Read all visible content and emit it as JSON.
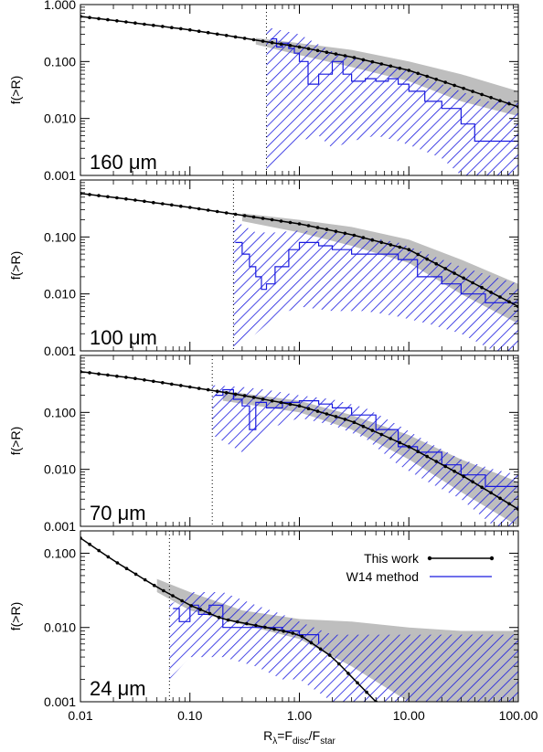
{
  "chart_data": {
    "type": "line",
    "shared_x": {
      "scale": "log",
      "xlim": [
        0.01,
        100.0
      ],
      "ticks": [
        0.01,
        0.1,
        1.0,
        10.0,
        100.0
      ],
      "tick_labels": [
        "0.01",
        "0.10",
        "1.00",
        "10.00",
        "100.00"
      ],
      "xlabel": {
        "main": "R",
        "sub1": "λ",
        "mid": "=F",
        "sub2": "disc",
        "mid2": "/F",
        "sub3": "star"
      }
    },
    "legend": {
      "placement": "inside-right (bottom panel)",
      "entries": [
        {
          "label": "This work",
          "color": "#000000",
          "style": "line-with-dots"
        },
        {
          "label": "W14 method",
          "color": "#1a1adf",
          "style": "line"
        }
      ]
    },
    "colors": {
      "this_work": "#000000",
      "band": "#bebebe",
      "w14": "#1a1adf"
    },
    "panels": [
      {
        "label": "160 μm",
        "ylabel": "f(>R)",
        "yscale": "log",
        "ylim": [
          0.001,
          1.0
        ],
        "yticks": [
          0.001,
          0.01,
          0.1,
          1.0
        ],
        "ytick_labels": [
          "0.001",
          "0.010",
          "0.100",
          "1.000"
        ],
        "vline_x": 0.5,
        "this_work": {
          "x": [
            0.01,
            0.03,
            0.1,
            0.3,
            1.0,
            3.0,
            10.0,
            30.0,
            100.0
          ],
          "y": [
            0.62,
            0.48,
            0.36,
            0.26,
            0.18,
            0.12,
            0.07,
            0.035,
            0.016
          ]
        },
        "band": {
          "x": [
            0.4,
            1.0,
            3.0,
            10.0,
            30.0,
            100.0
          ],
          "low": [
            0.2,
            0.13,
            0.08,
            0.045,
            0.02,
            0.011
          ],
          "high": [
            0.26,
            0.21,
            0.16,
            0.1,
            0.06,
            0.03
          ]
        },
        "w14": {
          "x": [
            0.55,
            0.62,
            0.7,
            0.8,
            0.9,
            1.0,
            1.2,
            1.5,
            2.0,
            2.5,
            3.0,
            4.0,
            5.0,
            6.5,
            8.0,
            10.0,
            14.0,
            20.0,
            30.0,
            40.0,
            60.0,
            100.0
          ],
          "y": [
            0.25,
            0.18,
            0.21,
            0.17,
            0.14,
            0.1,
            0.04,
            0.06,
            0.1,
            0.06,
            0.045,
            0.05,
            0.045,
            0.05,
            0.04,
            0.03,
            0.02,
            0.015,
            0.008,
            0.004,
            0.004,
            0.004
          ]
        },
        "w14_band": {
          "x": [
            0.5,
            0.7,
            1.0,
            1.5,
            2.0,
            3.0,
            5.0,
            8.0,
            12.0,
            20.0,
            30.0,
            50.0,
            100.0
          ],
          "low": [
            0.001,
            0.002,
            0.004,
            0.005,
            0.003,
            0.004,
            0.005,
            0.004,
            0.003,
            0.002,
            0.001,
            0.001,
            0.001
          ],
          "high": [
            0.4,
            0.35,
            0.3,
            0.2,
            0.15,
            0.12,
            0.1,
            0.08,
            0.06,
            0.04,
            0.03,
            0.02,
            0.02
          ]
        }
      },
      {
        "label": "100 μm",
        "ylabel": "f(>R)",
        "yscale": "log",
        "ylim": [
          0.001,
          1.0
        ],
        "yticks": [
          0.001,
          0.01,
          0.1
        ],
        "ytick_labels": [
          "0.001",
          "0.010",
          "0.100"
        ],
        "vline_x": 0.25,
        "this_work": {
          "x": [
            0.01,
            0.03,
            0.1,
            0.3,
            1.0,
            3.0,
            10.0,
            30.0,
            100.0
          ],
          "y": [
            0.58,
            0.45,
            0.33,
            0.24,
            0.17,
            0.11,
            0.06,
            0.02,
            0.006
          ]
        },
        "band": {
          "x": [
            0.3,
            1.0,
            3.0,
            10.0,
            30.0,
            100.0
          ],
          "low": [
            0.19,
            0.12,
            0.07,
            0.035,
            0.01,
            0.003
          ],
          "high": [
            0.26,
            0.2,
            0.15,
            0.09,
            0.04,
            0.015
          ]
        },
        "w14": {
          "x": [
            0.26,
            0.3,
            0.35,
            0.4,
            0.45,
            0.5,
            0.6,
            0.8,
            1.0,
            1.5,
            2.0,
            3.0,
            5.0,
            8.0,
            12.0,
            20.0,
            30.0,
            50.0,
            100.0
          ],
          "y": [
            0.08,
            0.05,
            0.03,
            0.02,
            0.012,
            0.015,
            0.03,
            0.06,
            0.08,
            0.07,
            0.06,
            0.05,
            0.05,
            0.04,
            0.02,
            0.015,
            0.01,
            0.007,
            0.005
          ]
        },
        "w14_band": {
          "x": [
            0.25,
            0.4,
            0.6,
            1.0,
            2.0,
            4.0,
            8.0,
            15.0,
            30.0,
            60.0,
            100.0
          ],
          "low": [
            0.001,
            0.002,
            0.004,
            0.006,
            0.005,
            0.005,
            0.004,
            0.003,
            0.002,
            0.001,
            0.001
          ],
          "high": [
            0.2,
            0.12,
            0.12,
            0.13,
            0.12,
            0.1,
            0.08,
            0.05,
            0.03,
            0.02,
            0.015
          ]
        }
      },
      {
        "label": "70 μm",
        "ylabel": "f(>R)",
        "yscale": "log",
        "ylim": [
          0.001,
          1.0
        ],
        "yticks": [
          0.001,
          0.01,
          0.1
        ],
        "ytick_labels": [
          "0.001",
          "0.010",
          "0.100"
        ],
        "vline_x": 0.16,
        "this_work": {
          "x": [
            0.01,
            0.03,
            0.1,
            0.3,
            1.0,
            3.0,
            10.0,
            30.0,
            100.0
          ],
          "y": [
            0.52,
            0.4,
            0.28,
            0.2,
            0.13,
            0.07,
            0.025,
            0.008,
            0.002
          ]
        },
        "band": {
          "x": [
            0.2,
            1.0,
            3.0,
            10.0,
            30.0,
            100.0
          ],
          "low": [
            0.16,
            0.1,
            0.05,
            0.015,
            0.004,
            0.001
          ],
          "high": [
            0.24,
            0.16,
            0.09,
            0.04,
            0.015,
            0.006
          ]
        },
        "w14": {
          "x": [
            0.17,
            0.2,
            0.25,
            0.3,
            0.35,
            0.4,
            0.5,
            0.7,
            1.0,
            1.5,
            2.0,
            3.0,
            5.0,
            8.0,
            12.0,
            20.0,
            30.0,
            50.0,
            100.0
          ],
          "y": [
            0.2,
            0.25,
            0.17,
            0.13,
            0.05,
            0.15,
            0.12,
            0.15,
            0.16,
            0.14,
            0.12,
            0.09,
            0.05,
            0.025,
            0.02,
            0.012,
            0.008,
            0.005,
            0.004
          ]
        },
        "w14_band": {
          "x": [
            0.16,
            0.3,
            0.5,
            1.0,
            2.0,
            4.0,
            8.0,
            15.0,
            30.0,
            60.0,
            100.0
          ],
          "low": [
            0.04,
            0.02,
            0.05,
            0.08,
            0.06,
            0.035,
            0.012,
            0.006,
            0.003,
            0.001,
            0.001
          ],
          "high": [
            0.3,
            0.28,
            0.25,
            0.2,
            0.17,
            0.12,
            0.06,
            0.03,
            0.015,
            0.01,
            0.008
          ]
        }
      },
      {
        "label": "24 μm",
        "ylabel": "f(>R)",
        "yscale": "log",
        "ylim": [
          0.001,
          0.2
        ],
        "yticks": [
          0.001,
          0.01,
          0.1
        ],
        "ytick_labels": [
          "0.001",
          "0.010",
          "0.100"
        ],
        "vline_x": 0.065,
        "this_work": {
          "x": [
            0.01,
            0.02,
            0.05,
            0.1,
            0.2,
            0.5,
            1.0,
            2.0,
            5.0
          ],
          "y": [
            0.16,
            0.08,
            0.035,
            0.02,
            0.013,
            0.01,
            0.008,
            0.004,
            0.001
          ]
        },
        "band": {
          "x": [
            0.05,
            0.1,
            0.3,
            1.0,
            3.0,
            10.0,
            30.0,
            100.0
          ],
          "low": [
            0.03,
            0.017,
            0.011,
            0.007,
            0.003,
            0.001,
            0.001,
            0.001
          ],
          "high": [
            0.045,
            0.03,
            0.017,
            0.013,
            0.012,
            0.01,
            0.009,
            0.009
          ]
        },
        "w14": {
          "x": [
            0.07,
            0.08,
            0.1,
            0.12,
            0.15,
            0.2,
            0.3,
            0.5,
            0.7,
            1.0,
            1.5
          ],
          "y": [
            0.018,
            0.012,
            0.02,
            0.015,
            0.02,
            0.01,
            0.01,
            0.01,
            0.009,
            0.008,
            0.006
          ]
        },
        "w14_band": {
          "x": [
            0.065,
            0.1,
            0.2,
            0.4,
            0.7,
            1.0,
            2.0,
            5.0,
            10.0,
            30.0,
            100.0
          ],
          "low": [
            0.002,
            0.004,
            0.004,
            0.003,
            0.002,
            0.002,
            0.001,
            0.001,
            0.001,
            0.001,
            0.001
          ],
          "high": [
            0.02,
            0.03,
            0.03,
            0.02,
            0.015,
            0.012,
            0.008,
            0.008,
            0.008,
            0.008,
            0.008
          ]
        }
      }
    ]
  }
}
